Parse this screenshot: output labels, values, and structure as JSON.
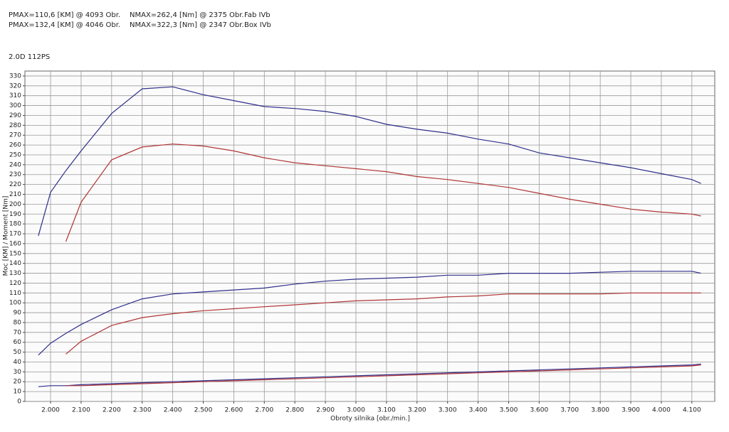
{
  "chart_data": {
    "type": "line",
    "header": [
      [
        "PMAX=110,6 [KM] @ 4093 Obr.",
        "NMAX=262,4 [Nm] @ 2375 Obr.",
        "Fab IVb"
      ],
      [
        "PMAX=132,4 [KM] @ 4046 Obr.",
        "NMAX=322,3 [Nm] @ 2347 Obr.",
        "Box IVb"
      ]
    ],
    "subtitle": "2.0D 112PS",
    "x_label": "Obroty silnika [obr./min.]",
    "y_label": "Moc [KM] / Moment [Nm]",
    "x": [
      1960,
      2000,
      2050,
      2100,
      2200,
      2300,
      2400,
      2500,
      2600,
      2700,
      2800,
      2900,
      3000,
      3100,
      3200,
      3300,
      3400,
      3500,
      3600,
      3700,
      3800,
      3900,
      4000,
      4100,
      4130
    ],
    "series": [
      {
        "color": "#2e2e8c",
        "values": [
          168,
          212,
          234,
          254,
          292,
          317,
          319,
          311,
          305,
          299,
          297,
          294,
          289,
          281,
          276,
          272,
          266,
          261,
          252,
          247,
          242,
          237,
          231,
          225,
          221
        ]
      },
      {
        "color": "#b03535",
        "values": [
          null,
          null,
          162,
          202,
          245,
          258,
          261,
          259,
          254,
          247,
          242,
          239,
          236,
          233,
          228,
          225,
          221,
          217,
          211,
          205,
          200,
          195,
          192,
          190,
          188
        ]
      },
      {
        "color": "#2e2e8c",
        "values": [
          47,
          59,
          69,
          78,
          93,
          104,
          109,
          111,
          113,
          115,
          119,
          122,
          124,
          125,
          126,
          128,
          128,
          130,
          130,
          130,
          131,
          132,
          132,
          132,
          130
        ]
      },
      {
        "color": "#b03535",
        "values": [
          null,
          null,
          48,
          61,
          77,
          85,
          89,
          92,
          94,
          96,
          98,
          100,
          102,
          103,
          104,
          106,
          107,
          109,
          109,
          109,
          109,
          110,
          110,
          110,
          110
        ]
      },
      {
        "color": "#2e2e8c",
        "values": [
          15,
          16,
          16,
          17,
          18,
          19,
          20,
          21,
          22,
          23,
          24,
          25,
          26,
          27,
          28,
          29,
          30,
          31,
          32,
          33,
          34,
          35,
          36,
          37,
          38
        ]
      },
      {
        "color": "#b03535",
        "values": [
          null,
          null,
          16,
          16,
          17,
          18,
          19,
          20,
          21,
          22,
          23,
          24,
          25,
          26,
          27,
          28,
          29,
          30,
          31,
          32,
          33,
          34,
          35,
          36,
          37
        ]
      }
    ],
    "xlim": [
      1916,
      4175
    ],
    "ylim": [
      0,
      335
    ],
    "xticks": [
      {
        "value": 2000,
        "label": "2.000"
      },
      {
        "value": 2100,
        "label": "2.100"
      },
      {
        "value": 2200,
        "label": "2.200"
      },
      {
        "value": 2300,
        "label": "2.300"
      },
      {
        "value": 2400,
        "label": "2.400"
      },
      {
        "value": 2500,
        "label": "2.500"
      },
      {
        "value": 2600,
        "label": "2.600"
      },
      {
        "value": 2700,
        "label": "2.700"
      },
      {
        "value": 2800,
        "label": "2.800"
      },
      {
        "value": 2900,
        "label": "2.900"
      },
      {
        "value": 3000,
        "label": "3.000"
      },
      {
        "value": 3100,
        "label": "3.100"
      },
      {
        "value": 3200,
        "label": "3.200"
      },
      {
        "value": 3300,
        "label": "3.300"
      },
      {
        "value": 3400,
        "label": "3.400"
      },
      {
        "value": 3500,
        "label": "3.500"
      },
      {
        "value": 3600,
        "label": "3.600"
      },
      {
        "value": 3700,
        "label": "3.700"
      },
      {
        "value": 3800,
        "label": "3.800"
      },
      {
        "value": 3900,
        "label": "3.900"
      },
      {
        "value": 4000,
        "label": "4.000"
      },
      {
        "value": 4100,
        "label": "4.100"
      }
    ],
    "yticks": [
      0,
      10,
      20,
      30,
      40,
      50,
      60,
      70,
      80,
      90,
      100,
      110,
      120,
      130,
      140,
      150,
      160,
      170,
      180,
      190,
      200,
      210,
      220,
      230,
      240,
      250,
      260,
      270,
      280,
      290,
      300,
      310,
      320,
      330
    ],
    "grid": true
  }
}
